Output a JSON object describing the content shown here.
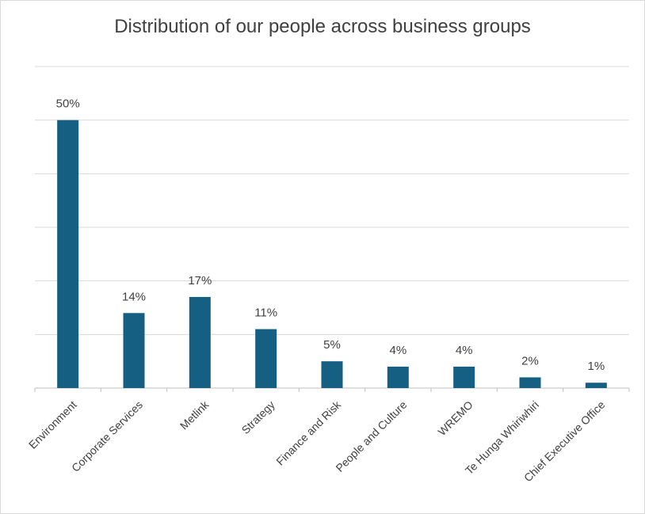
{
  "chart_data": {
    "type": "bar",
    "title": "Distribution of our people across business groups",
    "categories": [
      "Environment",
      "Corporate Services",
      "Metlink",
      "Strategy",
      "Finance and Risk",
      "People and Culture",
      "WREMO",
      "Te Hunga Whiriwhiri",
      "Chief Executive Office"
    ],
    "values": [
      50,
      14,
      17,
      11,
      5,
      4,
      4,
      2,
      1
    ],
    "data_labels": [
      "50%",
      "14%",
      "17%",
      "11%",
      "5%",
      "4%",
      "4%",
      "2%",
      "1%"
    ],
    "ylim": [
      0,
      60
    ],
    "grid": true,
    "bar_color": "#156082"
  }
}
